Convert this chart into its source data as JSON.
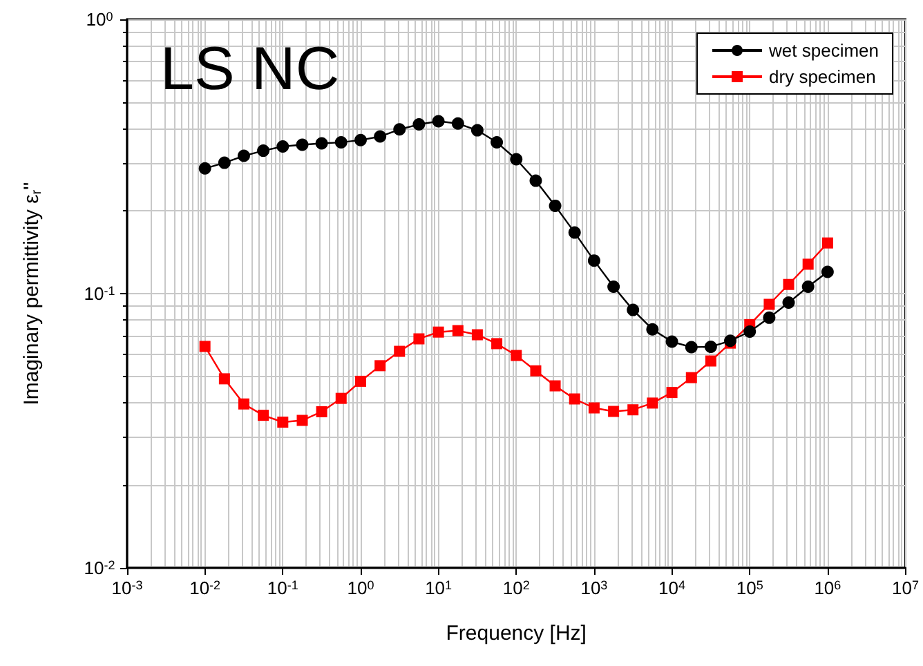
{
  "chart_data": {
    "type": "line",
    "xlabel": "Frequency [Hz]",
    "ylabel": "Imaginary permittivity ε$_{r}$''",
    "annotations": [
      "LS NC"
    ],
    "x": [
      0.01,
      0.0178,
      0.0316,
      0.0562,
      0.1,
      0.178,
      0.316,
      0.562,
      1,
      1.78,
      3.16,
      5.62,
      10,
      17.8,
      31.6,
      56.2,
      100,
      178,
      316,
      562,
      1000,
      1780,
      3160,
      5620,
      10000,
      17800,
      31600,
      56200,
      100000,
      178000,
      316000,
      562000,
      1000000
    ],
    "series": [
      {
        "name": "wet specimen",
        "color": "#000000",
        "marker": "circle",
        "values": [
          0.286,
          0.3,
          0.318,
          0.332,
          0.344,
          0.349,
          0.353,
          0.356,
          0.363,
          0.374,
          0.397,
          0.414,
          0.425,
          0.417,
          0.394,
          0.356,
          0.309,
          0.258,
          0.209,
          0.167,
          0.132,
          0.106,
          0.0872,
          0.0741,
          0.0668,
          0.0638,
          0.064,
          0.0673,
          0.0727,
          0.0817,
          0.0927,
          0.106,
          0.12
        ]
      },
      {
        "name": "dry specimen",
        "color": "#ff0000",
        "marker": "square",
        "values": [
          0.0642,
          0.0489,
          0.0396,
          0.036,
          0.034,
          0.0345,
          0.0371,
          0.0415,
          0.0479,
          0.0546,
          0.0616,
          0.0684,
          0.0724,
          0.0733,
          0.0708,
          0.0657,
          0.0595,
          0.0523,
          0.0461,
          0.0413,
          0.0383,
          0.0372,
          0.0377,
          0.0399,
          0.0436,
          0.0494,
          0.0568,
          0.066,
          0.0771,
          0.0914,
          0.108,
          0.128,
          0.153
        ]
      }
    ],
    "log": "xy",
    "xlim": [
      0.001,
      10000000
    ],
    "ylim": [
      0.01,
      1
    ],
    "xticks": [
      {
        "value": 0.001,
        "label": "10$^{-3}$"
      },
      {
        "value": 0.01,
        "label": "10$^{-2}$"
      },
      {
        "value": 0.1,
        "label": "10$^{-1}$"
      },
      {
        "value": 1,
        "label": "10$^{0}$"
      },
      {
        "value": 10,
        "label": "10$^{1}$"
      },
      {
        "value": 100,
        "label": "10$^{2}$"
      },
      {
        "value": 1000,
        "label": "10$^{3}$"
      },
      {
        "value": 10000,
        "label": "10$^{4}$"
      },
      {
        "value": 100000,
        "label": "10$^{5}$"
      },
      {
        "value": 1000000,
        "label": "10$^{6}$"
      },
      {
        "value": 10000000,
        "label": "10$^{7}$"
      }
    ],
    "yticks": [
      {
        "value": 0.01,
        "label": "10$^{-2}$"
      },
      {
        "value": 0.1,
        "label": "10$^{-1}$"
      },
      {
        "value": 1,
        "label": "10$^{0}$"
      }
    ],
    "grid": true,
    "legend": "top right",
    "line_style": "solid"
  }
}
